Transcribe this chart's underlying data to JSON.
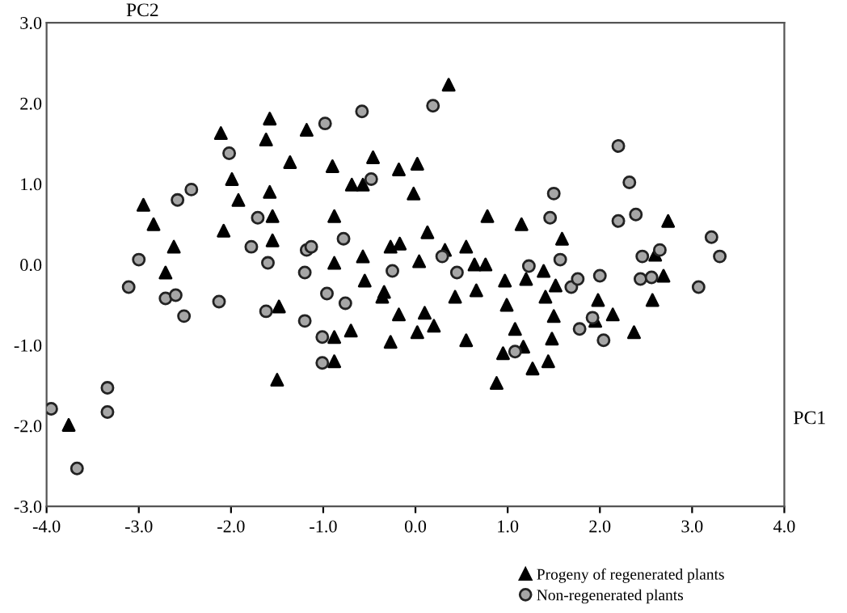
{
  "chart_data": {
    "type": "scatter",
    "xlabel": "PC1",
    "ylabel": "PC2",
    "xlim": [
      -4,
      4
    ],
    "ylim": [
      -3,
      3
    ],
    "xticks": [
      {
        "value": -4,
        "label": "-4.0"
      },
      {
        "value": -3,
        "label": "-3.0"
      },
      {
        "value": -2,
        "label": "-2.0"
      },
      {
        "value": -1,
        "label": "-1.0"
      },
      {
        "value": 0,
        "label": "0.0"
      },
      {
        "value": 1,
        "label": "1.0"
      },
      {
        "value": 2,
        "label": "2.0"
      },
      {
        "value": 3,
        "label": "3.0"
      },
      {
        "value": 4,
        "label": "4.0"
      }
    ],
    "yticks": [
      {
        "value": -3,
        "label": "-3.0"
      },
      {
        "value": -2,
        "label": "-2.0"
      },
      {
        "value": -1,
        "label": "-1.0"
      },
      {
        "value": 0,
        "label": "0.0"
      },
      {
        "value": 1,
        "label": "1.0"
      },
      {
        "value": 2,
        "label": "2.0"
      },
      {
        "value": 3,
        "label": "3.0"
      }
    ],
    "grid": false,
    "legend": "bottom right",
    "series": [
      {
        "name": "Progeny of regenerated plants",
        "color": "#000000",
        "marker": "triangle",
        "x": [
          -2.95,
          -2.84,
          -2.62,
          -2.11,
          -1.99,
          -1.92,
          -2.08,
          -1.58,
          -1.62,
          -1.58,
          -1.55,
          -1.55,
          -1.36,
          -1.18,
          -0.9,
          -0.88,
          -0.69,
          -0.57,
          -0.46,
          -0.18,
          0.02,
          -0.02,
          0.13,
          -0.27,
          -0.17,
          -0.57,
          -0.88,
          0.04,
          0.36,
          0.78,
          1.15,
          1.59,
          0.32,
          0.55,
          2.74,
          2.6,
          0.64,
          0.76,
          -2.71,
          -1.48,
          -1.5,
          -0.88,
          -0.88,
          -0.7,
          -0.55,
          -0.34,
          -0.36,
          -0.18,
          -0.27,
          0.02,
          0.1,
          0.2,
          -3.76,
          0.43,
          0.66,
          0.55,
          0.97,
          0.99,
          1.08,
          1.17,
          0.95,
          0.88,
          1.27,
          1.44,
          1.48,
          1.5,
          1.2,
          1.39,
          1.52,
          1.41,
          1.98,
          1.95,
          2.14,
          2.37,
          2.69,
          2.57
        ],
        "values": [
          0.74,
          0.5,
          0.22,
          1.63,
          1.06,
          0.8,
          0.42,
          1.81,
          1.55,
          0.9,
          0.6,
          0.3,
          1.27,
          1.67,
          1.22,
          0.6,
          0.99,
          0.99,
          1.33,
          1.18,
          1.25,
          0.88,
          0.4,
          0.22,
          0.26,
          0.1,
          0.02,
          0.04,
          2.23,
          0.6,
          0.5,
          0.32,
          0.18,
          0.22,
          0.54,
          0.12,
          0.0,
          0.0,
          -0.1,
          -0.52,
          -1.43,
          -0.9,
          -1.2,
          -0.82,
          -0.2,
          -0.34,
          -0.4,
          -0.62,
          -0.96,
          -0.84,
          -0.6,
          -0.76,
          -1.99,
          -0.4,
          -0.32,
          -0.94,
          -0.2,
          -0.5,
          -0.8,
          -1.02,
          -1.1,
          -1.47,
          -1.29,
          -1.2,
          -0.92,
          -0.64,
          -0.18,
          -0.08,
          -0.26,
          -0.4,
          -0.44,
          -0.7,
          -0.62,
          -0.84,
          -0.14,
          -0.44
        ]
      },
      {
        "name": "Non-regenerated plants",
        "color": "#a6a6a6",
        "marker": "circle",
        "x": [
          -3.0,
          -2.58,
          -2.43,
          -2.02,
          -1.71,
          -1.78,
          -1.6,
          -1.18,
          -1.13,
          -0.98,
          -0.78,
          -0.58,
          -0.48,
          0.19,
          2.2,
          2.32,
          1.5,
          1.46,
          2.2,
          2.39,
          3.21,
          3.3,
          2.46,
          2.65,
          1.57,
          0.29,
          1.23,
          -3.11,
          -2.71,
          -2.6,
          -2.51,
          -2.13,
          -1.62,
          -1.2,
          -1.2,
          -0.96,
          -0.76,
          -1.01,
          -1.01,
          -0.25,
          -3.95,
          -3.34,
          -3.34,
          -3.67,
          0.45,
          1.08,
          1.69,
          1.76,
          2.0,
          1.92,
          1.78,
          2.04,
          2.44,
          2.56,
          3.07
        ],
        "values": [
          0.06,
          0.8,
          0.93,
          1.38,
          0.58,
          0.22,
          0.02,
          0.18,
          0.22,
          1.75,
          0.32,
          1.9,
          1.06,
          1.97,
          1.47,
          1.02,
          0.88,
          0.58,
          0.54,
          0.62,
          0.34,
          0.1,
          0.1,
          0.18,
          0.06,
          0.1,
          -0.02,
          -0.28,
          -0.42,
          -0.38,
          -0.64,
          -0.46,
          -0.58,
          -0.1,
          -0.7,
          -0.36,
          -0.48,
          -0.9,
          -1.22,
          -0.08,
          -1.79,
          -1.53,
          -1.83,
          -2.53,
          -0.1,
          -1.08,
          -0.28,
          -0.18,
          -0.14,
          -0.66,
          -0.8,
          -0.94,
          -0.18,
          -0.16,
          -0.28
        ]
      }
    ]
  }
}
